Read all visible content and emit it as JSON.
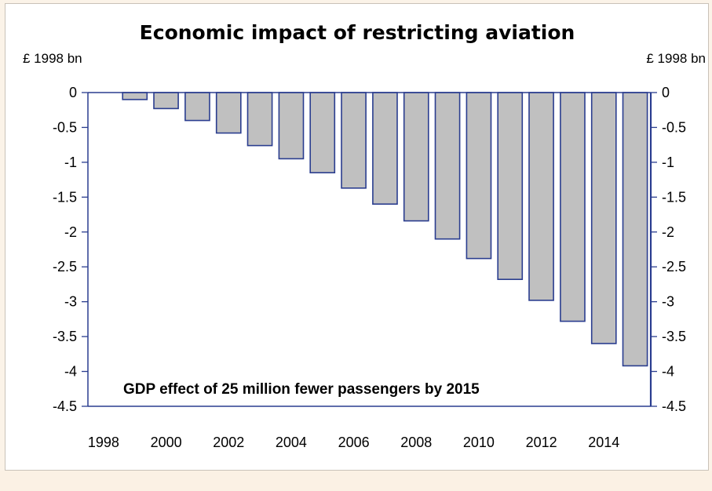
{
  "chart_data": {
    "type": "bar",
    "title": "Economic impact of restricting aviation",
    "ylabel_left": "£ 1998 bn",
    "ylabel_right": "£ 1998 bn",
    "annotation": "GDP effect of 25 million fewer passengers by 2015",
    "ylim": [
      -4.5,
      0
    ],
    "yticks": [
      0,
      -0.5,
      -1,
      -1.5,
      -2,
      -2.5,
      -3,
      -3.5,
      -4,
      -4.5
    ],
    "ytick_labels": [
      "0",
      "-0.5",
      "-1",
      "-1.5",
      "-2",
      "-2.5",
      "-3",
      "-3.5",
      "-4",
      "-4.5"
    ],
    "x_tick_labels": [
      "1998",
      "2000",
      "2002",
      "2004",
      "2006",
      "2008",
      "2010",
      "2012",
      "2014"
    ],
    "categories": [
      "1998",
      "1999",
      "2000",
      "2001",
      "2002",
      "2003",
      "2004",
      "2005",
      "2006",
      "2007",
      "2008",
      "2009",
      "2010",
      "2011",
      "2012",
      "2013",
      "2014",
      "2015"
    ],
    "values": [
      0,
      -0.1,
      -0.23,
      -0.4,
      -0.58,
      -0.76,
      -0.95,
      -1.15,
      -1.37,
      -1.6,
      -1.84,
      -2.1,
      -2.38,
      -2.68,
      -2.98,
      -3.28,
      -3.6,
      -3.92
    ],
    "bar_color": "#c0c0c0",
    "bar_edge_color": "#2a3d8f",
    "axis_color": "#2a3d8f",
    "grid": false,
    "legend": "none"
  }
}
